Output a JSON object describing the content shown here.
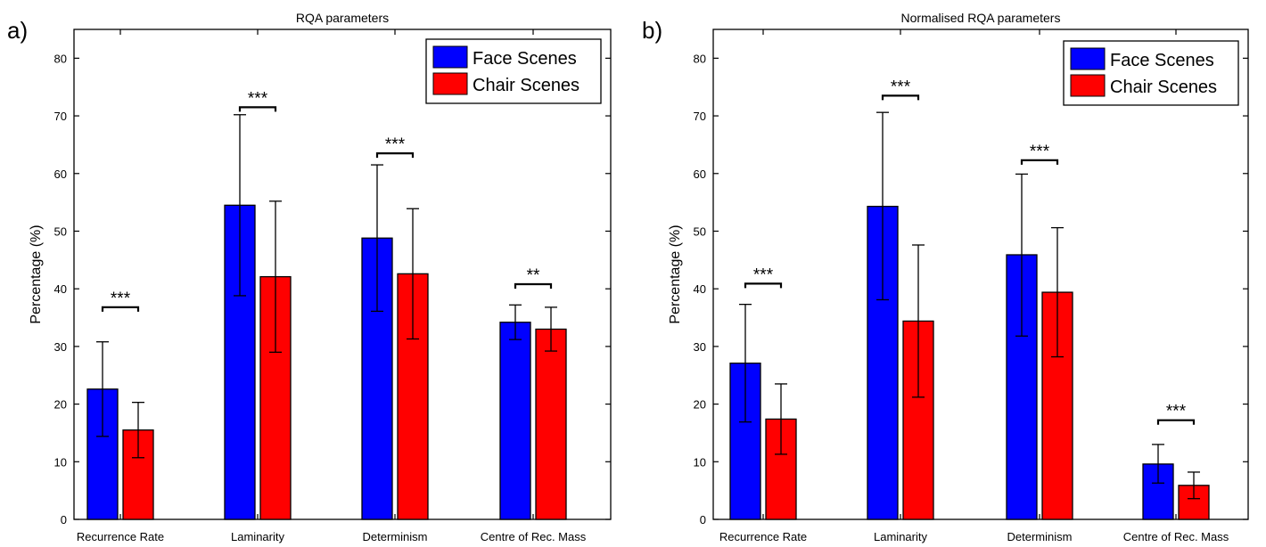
{
  "figure": {
    "colors": {
      "face": "#0000FF",
      "chair": "#FF0000",
      "axis": "#000000"
    },
    "legend_location": "top-right"
  },
  "chart_data": [
    {
      "type": "bar",
      "panel_label": "a)",
      "title": "RQA parameters",
      "xlabel": "",
      "ylabel": "Percentage (%)",
      "ylim": [
        0,
        85
      ],
      "yticks": [
        0,
        10,
        20,
        30,
        40,
        50,
        60,
        70,
        80
      ],
      "grid": false,
      "legend_position": "top-right",
      "categories": [
        "Recurrence Rate",
        "Laminarity",
        "Determinism",
        "Centre of Rec. Mass"
      ],
      "series": [
        {
          "name": "Face Scenes",
          "values": [
            22.6,
            54.5,
            48.8,
            34.2
          ],
          "err_low": [
            14.4,
            38.8,
            36.1,
            31.2
          ],
          "err_high": [
            30.8,
            70.2,
            61.5,
            37.2
          ]
        },
        {
          "name": "Chair Scenes",
          "values": [
            15.5,
            42.1,
            42.6,
            33.0
          ],
          "err_low": [
            10.7,
            29.0,
            31.3,
            29.2
          ],
          "err_high": [
            20.3,
            55.2,
            53.9,
            36.8
          ]
        }
      ],
      "significance": [
        {
          "category": 0,
          "label": "***",
          "bracket": 36.8
        },
        {
          "category": 1,
          "label": "***",
          "bracket": 71.5
        },
        {
          "category": 2,
          "label": "***",
          "bracket": 63.5
        },
        {
          "category": 3,
          "label": "**",
          "bracket": 40.8
        }
      ]
    },
    {
      "type": "bar",
      "panel_label": "b)",
      "title": "Normalised RQA parameters",
      "xlabel": "",
      "ylabel": "Percentage (%)",
      "ylim": [
        0,
        85
      ],
      "yticks": [
        0,
        10,
        20,
        30,
        40,
        50,
        60,
        70,
        80
      ],
      "grid": false,
      "legend_position": "top-right",
      "categories": [
        "Recurrence Rate",
        "Laminarity",
        "Determinism",
        "Centre of Rec. Mass"
      ],
      "series": [
        {
          "name": "Face Scenes",
          "values": [
            27.1,
            54.3,
            45.9,
            9.6
          ],
          "err_low": [
            16.9,
            38.1,
            31.8,
            6.3
          ],
          "err_high": [
            37.3,
            70.6,
            59.9,
            13.0
          ]
        },
        {
          "name": "Chair Scenes",
          "values": [
            17.4,
            34.4,
            39.4,
            5.9
          ],
          "err_low": [
            11.3,
            21.2,
            28.2,
            3.6
          ],
          "err_high": [
            23.5,
            47.6,
            50.6,
            8.2
          ]
        }
      ],
      "significance": [
        {
          "category": 0,
          "label": "***",
          "bracket": 40.9
        },
        {
          "category": 1,
          "label": "***",
          "bracket": 73.5
        },
        {
          "category": 2,
          "label": "***",
          "bracket": 62.3
        },
        {
          "category": 3,
          "label": "***",
          "bracket": 17.2
        }
      ]
    }
  ]
}
